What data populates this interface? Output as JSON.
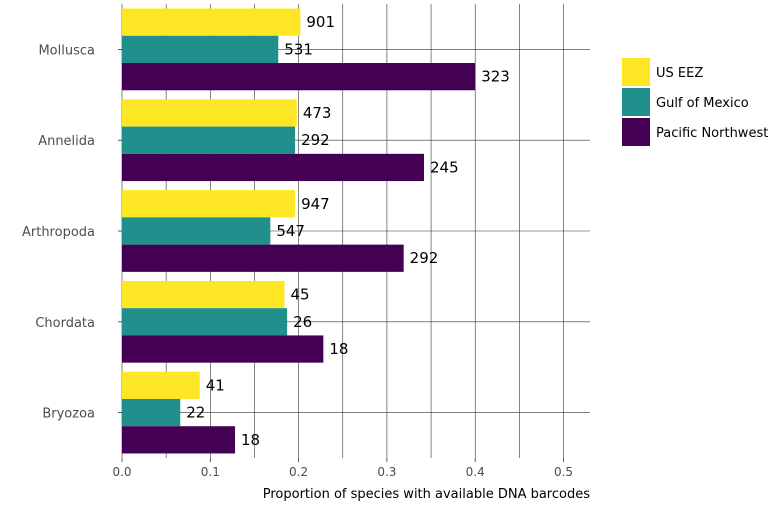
{
  "chart_data": {
    "type": "bar",
    "orientation": "horizontal",
    "categories": [
      "Mollusca",
      "Annelida",
      "Arthropoda",
      "Chordata",
      "Bryozoa"
    ],
    "series": [
      {
        "name": "US EEZ",
        "color": "#FDE725",
        "values": [
          0.202,
          0.198,
          0.196,
          0.184,
          0.088
        ],
        "labels": [
          "901",
          "473",
          "947",
          "45",
          "41"
        ]
      },
      {
        "name": "Gulf of Mexico",
        "color": "#21908C",
        "values": [
          0.177,
          0.196,
          0.168,
          0.187,
          0.066
        ],
        "labels": [
          "531",
          "292",
          "547",
          "26",
          "22"
        ]
      },
      {
        "name": "Pacific Northwest",
        "color": "#440154",
        "values": [
          0.4,
          0.342,
          0.319,
          0.228,
          0.128
        ],
        "labels": [
          "323",
          "245",
          "292",
          "18",
          "18"
        ]
      }
    ],
    "xlabel": "Proportion of species with available DNA barcodes",
    "ylabel": "",
    "xlim": [
      0,
      0.53
    ],
    "xticks": [
      "0.0",
      "0.1",
      "0.2",
      "0.3",
      "0.4",
      "0.5"
    ],
    "grid": true,
    "legend_position": "right"
  }
}
